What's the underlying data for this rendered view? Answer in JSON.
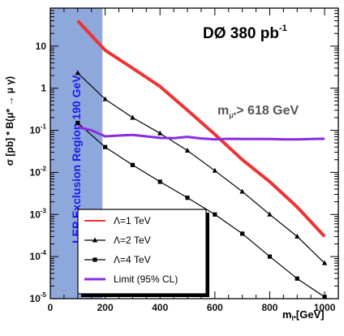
{
  "chart_data": {
    "type": "line",
    "title": "DØ  380 pb",
    "title_superscript": "-1",
    "xlabel": "m",
    "xlabel_subscript": "l*",
    "xlabel_unit": "[GeV]",
    "ylabel": "σ [pb] * B(μ* → μ γ)",
    "xlim": [
      0,
      1050
    ],
    "ylim": [
      1e-05,
      80
    ],
    "yscale": "log",
    "x_ticks": [
      0,
      200,
      400,
      600,
      800,
      1000
    ],
    "x_tick_labels": [
      "0",
      "200",
      "400",
      "600",
      "800",
      "1000"
    ],
    "y_ticks": [
      1e-05,
      0.0001,
      0.001,
      0.01,
      0.1,
      1,
      10
    ],
    "y_tick_labels": [
      {
        "base": "10",
        "exp": "-5"
      },
      {
        "base": "10",
        "exp": "-4"
      },
      {
        "base": "10",
        "exp": "-3"
      },
      {
        "base": "10",
        "exp": "-2"
      },
      {
        "base": "10",
        "exp": "-1"
      },
      {
        "base": "1",
        "exp": ""
      },
      {
        "base": "10",
        "exp": ""
      }
    ],
    "exclusion_region": {
      "x": [
        0,
        190
      ],
      "label": "LEP Exclusion Region 190 GeV",
      "color": "#8fa8dc"
    },
    "annotation": {
      "text": "m",
      "subscript": "μ*",
      "suffix": "> 618 GeV",
      "x": 610,
      "y": 0.3
    },
    "legend_position": "bottom-left",
    "series": [
      {
        "name": "Λ=1 TeV",
        "color": "#ee3333",
        "marker": "none",
        "x": [
          100,
          200,
          300,
          400,
          500,
          600,
          700,
          800,
          900,
          1000
        ],
        "y": [
          40,
          8,
          3,
          1.1,
          0.3,
          0.08,
          0.02,
          0.006,
          0.0015,
          0.0003
        ]
      },
      {
        "name": "Λ=2 TeV",
        "color": "#000000",
        "marker": "triangle",
        "x": [
          100,
          200,
          300,
          400,
          500,
          600,
          700,
          800,
          900,
          1000
        ],
        "y": [
          2.3,
          0.55,
          0.2,
          0.085,
          0.033,
          0.011,
          0.0035,
          0.001,
          0.0003,
          7e-05
        ]
      },
      {
        "name": "Λ=4 TeV",
        "color": "#000000",
        "marker": "square",
        "x": [
          100,
          200,
          300,
          400,
          500,
          600,
          700,
          800,
          900,
          1000
        ],
        "y": [
          0.15,
          0.04,
          0.015,
          0.006,
          0.0025,
          0.001,
          0.00035,
          0.0001,
          3e-05,
          1.1e-05
        ]
      },
      {
        "name": "Limit (95% CL)",
        "color": "#8a2be2",
        "marker": "none",
        "x": [
          100,
          150,
          200,
          250,
          300,
          350,
          400,
          450,
          500,
          550,
          600,
          650,
          700,
          750,
          800,
          850,
          900,
          950,
          1000
        ],
        "y": [
          0.12,
          0.1,
          0.072,
          0.075,
          0.078,
          0.072,
          0.066,
          0.065,
          0.07,
          0.064,
          0.061,
          0.063,
          0.062,
          0.062,
          0.062,
          0.061,
          0.061,
          0.062,
          0.063
        ]
      }
    ]
  }
}
